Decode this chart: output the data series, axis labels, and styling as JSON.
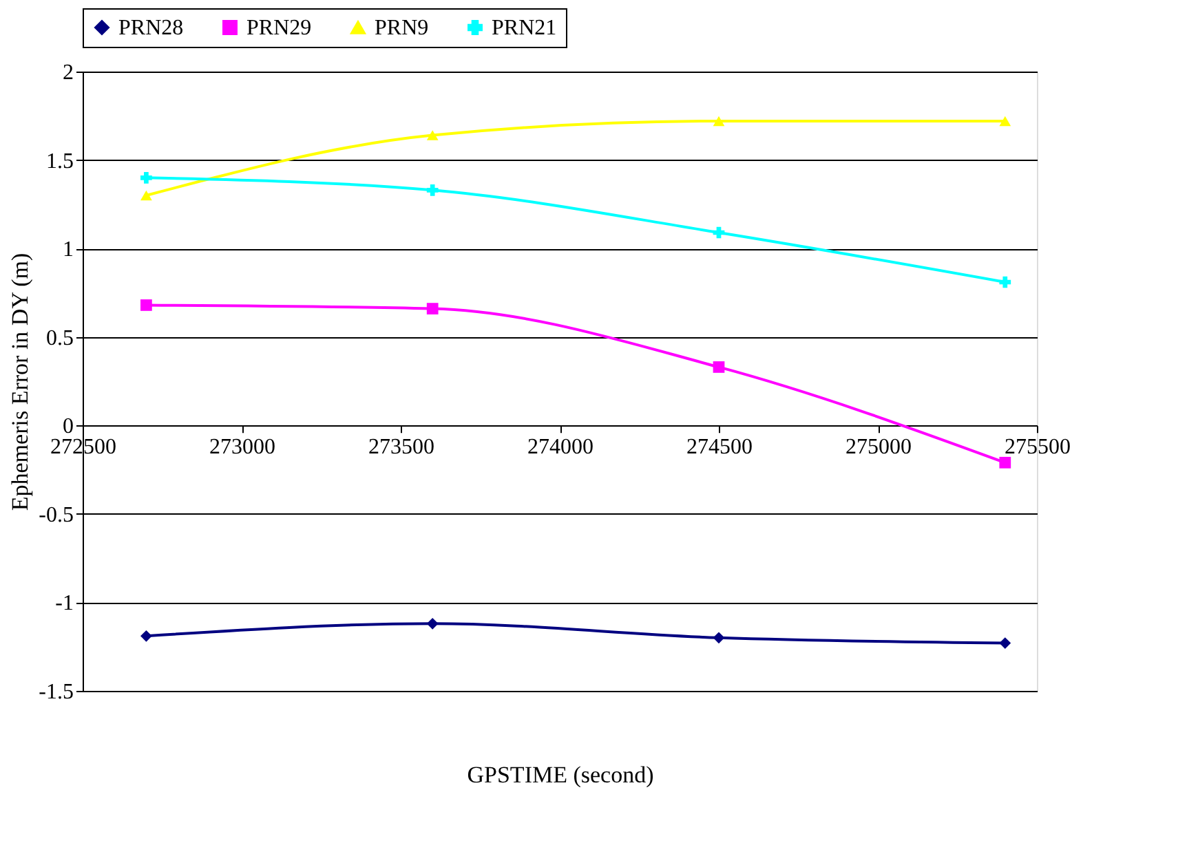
{
  "chart_data": {
    "type": "line",
    "xlabel": "GPSTIME (second)",
    "ylabel": "Ephemeris Error in DY (m)",
    "x": [
      272700,
      273600,
      274500,
      275400
    ],
    "series": [
      {
        "name": "PRN28",
        "color": "#000080",
        "marker": "diamond",
        "values": [
          -1.19,
          -1.12,
          -1.2,
          -1.23
        ]
      },
      {
        "name": "PRN29",
        "color": "#ff00ff",
        "marker": "square",
        "values": [
          0.68,
          0.66,
          0.33,
          -0.21
        ]
      },
      {
        "name": "PRN9",
        "color": "#ffff00",
        "marker": "triangle",
        "values": [
          1.3,
          1.64,
          1.72,
          1.72
        ]
      },
      {
        "name": "PRN21",
        "color": "#00ffff",
        "marker": "cross",
        "values": [
          1.4,
          1.33,
          1.09,
          0.81
        ]
      }
    ],
    "xlim": [
      272500,
      275500
    ],
    "xticks": [
      272500,
      273000,
      273500,
      274000,
      274500,
      275000,
      275500
    ],
    "ylim": [
      -1.5,
      2
    ],
    "yticks": [
      -1.5,
      -1,
      -0.5,
      0,
      0.5,
      1,
      1.5,
      2
    ],
    "grid": "y",
    "legend": "top"
  }
}
